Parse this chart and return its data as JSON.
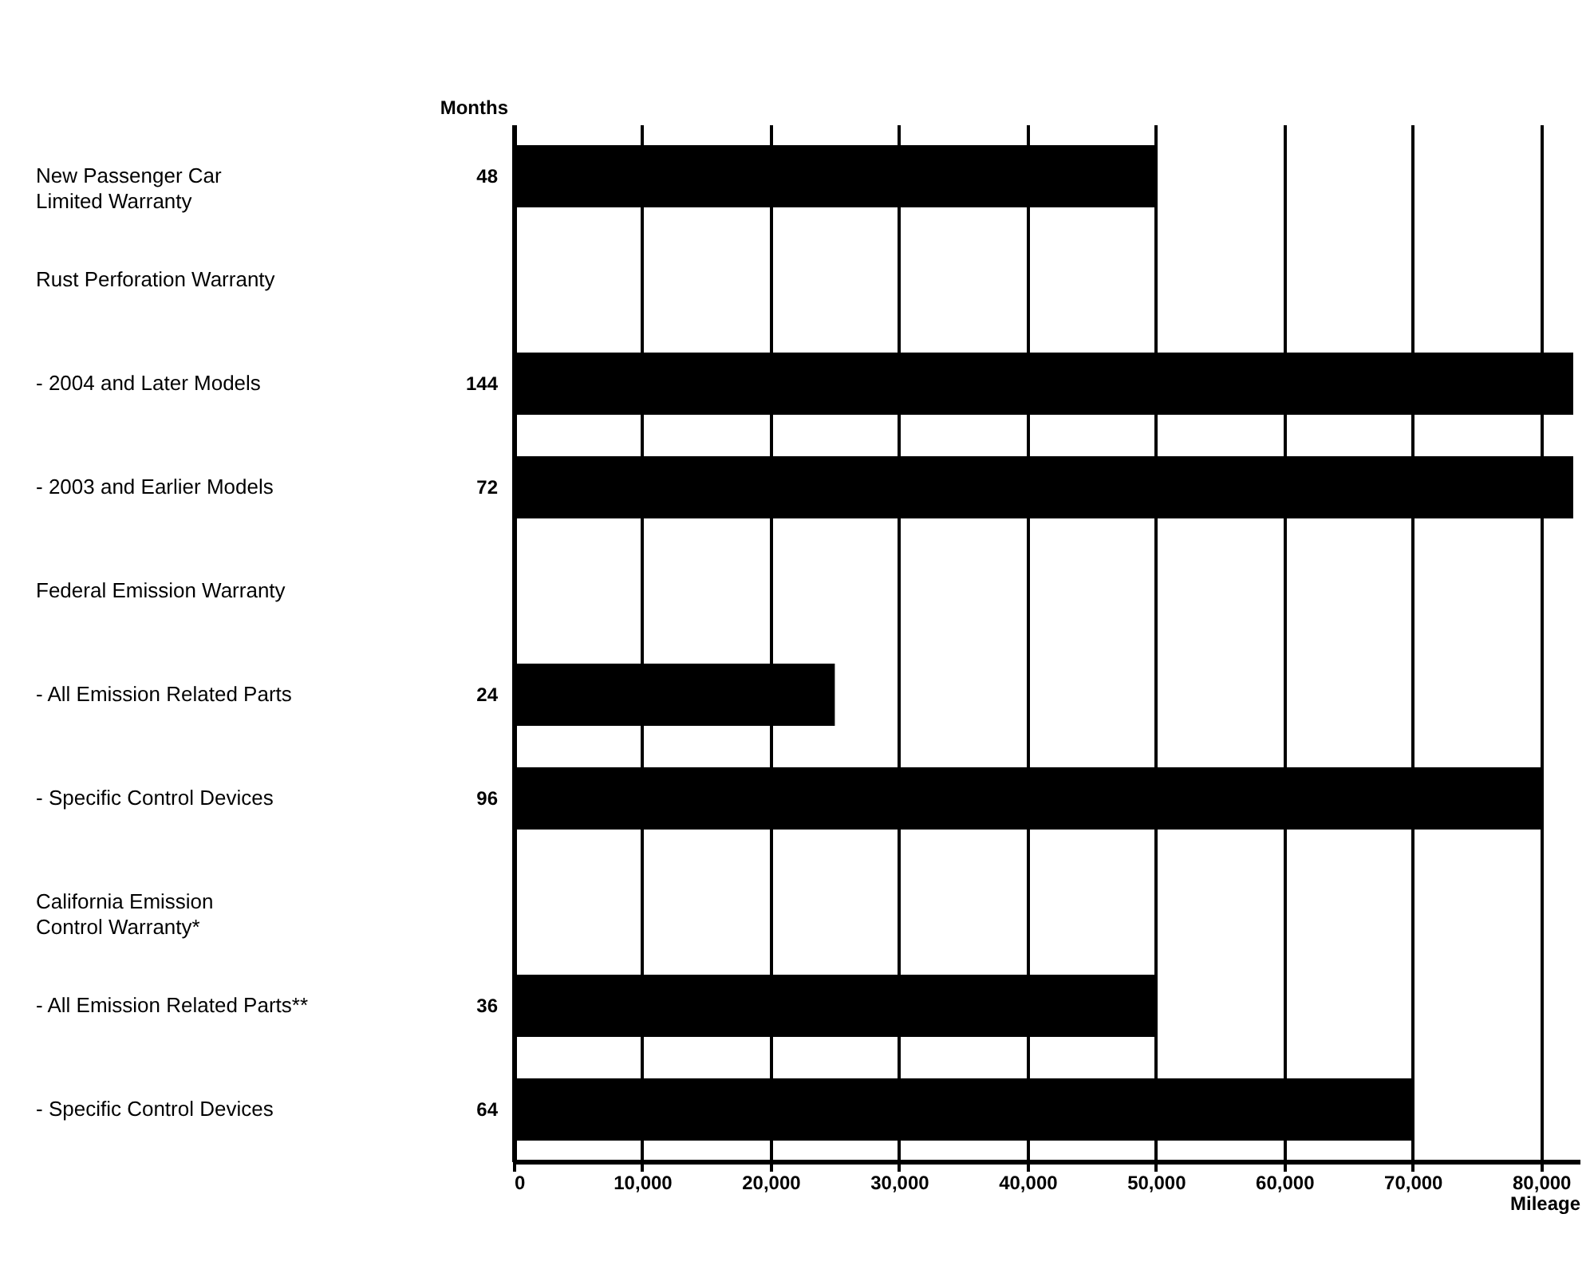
{
  "chart_data": {
    "type": "bar",
    "orientation": "horizontal",
    "categories": [
      "New Passenger Car\nLimited Warranty",
      "Rust Perforation Warranty",
      "- 2004 and Later Models",
      "- 2003 and Earlier Models",
      "Federal Emission Warranty",
      "- All Emission Related Parts",
      "- Specific Control Devices",
      "California Emission\nControl Warranty*",
      "- All Emission Related Parts**",
      "- Specific Control Devices"
    ],
    "values": [
      50000,
      null,
      82500,
      82500,
      null,
      25000,
      80000,
      null,
      50000,
      70000
    ],
    "color": "#000000",
    "xlabel": "Mileage",
    "ylabel": "Months",
    "annotations": [
      "48",
      "144",
      "72",
      "24",
      "96",
      "36",
      "64"
    ],
    "xlim": [
      0,
      83000
    ],
    "xticks": [
      0,
      {
        "value": 10000,
        "label": "10,000"
      },
      {
        "value": 20000,
        "label": "20,000"
      },
      {
        "value": 30000,
        "label": "30,000"
      },
      {
        "value": 40000,
        "label": "40,000"
      },
      {
        "value": 50000,
        "label": "50,000"
      },
      {
        "value": 60000,
        "label": "60,000"
      },
      {
        "value": 70000,
        "label": "70,000"
      },
      {
        "value": 80000,
        "label": "80,000"
      }
    ],
    "grid": "x"
  }
}
